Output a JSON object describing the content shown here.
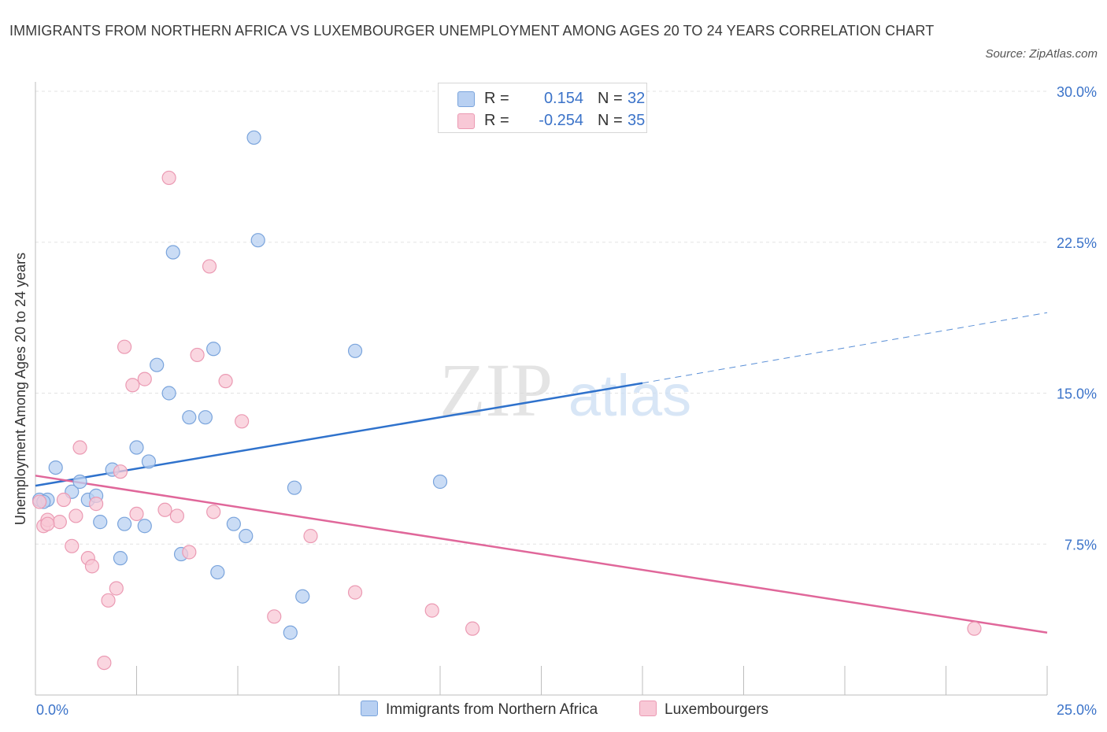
{
  "title": "IMMIGRANTS FROM NORTHERN AFRICA VS LUXEMBOURGER UNEMPLOYMENT AMONG AGES 20 TO 24 YEARS CORRELATION CHART",
  "source": "Source: ZipAtlas.com",
  "watermark": {
    "zip": "ZIP",
    "atlas": "atlas"
  },
  "legend": {
    "series": [
      {
        "r_label": "R =",
        "r_value": "0.154",
        "n_label": "N =",
        "n_value": "32"
      },
      {
        "r_label": "R =",
        "r_value": "-0.254",
        "n_label": "N =",
        "n_value": "35"
      }
    ]
  },
  "colors": {
    "blue_fill": "#b8d0f2",
    "blue_stroke": "#7aa4dc",
    "blue_line": "#2f72cc",
    "pink_fill": "#f8c8d6",
    "pink_stroke": "#eb9ab3",
    "pink_line": "#e0679a",
    "tick_label": "#3b73c9",
    "grid": "#e3e3e3"
  },
  "chart_data": {
    "type": "scatter",
    "title": "IMMIGRANTS FROM NORTHERN AFRICA VS LUXEMBOURGER UNEMPLOYMENT AMONG AGES 20 TO 24 YEARS CORRELATION CHART",
    "xlabel": "",
    "ylabel": "Unemployment Among Ages 20 to 24 years",
    "xlim": [
      0,
      25
    ],
    "ylim": [
      0,
      30
    ],
    "x_tick_labels": [
      "0.0%",
      "25.0%"
    ],
    "y_ticks": [
      7.5,
      15.0,
      22.5,
      30.0
    ],
    "y_tick_labels": [
      "7.5%",
      "15.0%",
      "22.5%",
      "30.0%"
    ],
    "grid": true,
    "legend_position": "bottom",
    "series": [
      {
        "name": "Immigrants from Northern Africa",
        "color": "#b8d0f2",
        "points": [
          [
            0.1,
            9.7
          ],
          [
            0.3,
            9.7
          ],
          [
            0.5,
            11.3
          ],
          [
            0.9,
            10.1
          ],
          [
            1.1,
            10.6
          ],
          [
            1.3,
            9.7
          ],
          [
            1.5,
            9.9
          ],
          [
            1.6,
            8.6
          ],
          [
            1.9,
            11.2
          ],
          [
            2.1,
            6.8
          ],
          [
            2.2,
            8.5
          ],
          [
            2.5,
            12.3
          ],
          [
            2.7,
            8.4
          ],
          [
            2.8,
            11.6
          ],
          [
            3.0,
            16.4
          ],
          [
            3.3,
            15.0
          ],
          [
            3.4,
            22.0
          ],
          [
            3.6,
            7.0
          ],
          [
            3.8,
            13.8
          ],
          [
            4.2,
            13.8
          ],
          [
            4.4,
            17.2
          ],
          [
            4.5,
            6.1
          ],
          [
            4.9,
            8.5
          ],
          [
            5.2,
            7.9
          ],
          [
            5.4,
            27.7
          ],
          [
            5.5,
            22.6
          ],
          [
            6.3,
            3.1
          ],
          [
            6.4,
            10.3
          ],
          [
            6.6,
            4.9
          ],
          [
            7.9,
            17.1
          ],
          [
            10.0,
            10.6
          ],
          [
            0.2,
            9.6
          ]
        ]
      },
      {
        "name": "Luxembourgers",
        "color": "#f8c8d6",
        "points": [
          [
            0.1,
            9.6
          ],
          [
            0.2,
            8.4
          ],
          [
            0.3,
            8.7
          ],
          [
            0.6,
            8.6
          ],
          [
            0.7,
            9.7
          ],
          [
            0.9,
            7.4
          ],
          [
            1.0,
            8.9
          ],
          [
            1.1,
            12.3
          ],
          [
            1.3,
            6.8
          ],
          [
            1.4,
            6.4
          ],
          [
            1.5,
            9.5
          ],
          [
            1.8,
            4.7
          ],
          [
            1.7,
            1.6
          ],
          [
            2.0,
            5.3
          ],
          [
            2.1,
            11.1
          ],
          [
            2.2,
            17.3
          ],
          [
            2.4,
            15.4
          ],
          [
            2.5,
            9.0
          ],
          [
            2.7,
            15.7
          ],
          [
            3.2,
            9.2
          ],
          [
            3.3,
            25.7
          ],
          [
            3.5,
            8.9
          ],
          [
            3.8,
            7.1
          ],
          [
            4.0,
            16.9
          ],
          [
            4.3,
            21.3
          ],
          [
            4.4,
            9.1
          ],
          [
            4.7,
            15.6
          ],
          [
            5.1,
            13.6
          ],
          [
            5.9,
            3.9
          ],
          [
            6.8,
            7.9
          ],
          [
            7.9,
            5.1
          ],
          [
            9.8,
            4.2
          ],
          [
            10.8,
            3.3
          ],
          [
            23.2,
            3.3
          ],
          [
            0.3,
            8.5
          ]
        ]
      }
    ],
    "trendlines": [
      {
        "series": "Immigrants from Northern Africa",
        "x": [
          0,
          15
        ],
        "y": [
          10.4,
          15.5
        ],
        "dashed_extension": {
          "x": [
            15,
            25
          ],
          "y": [
            15.5,
            19.0
          ]
        }
      },
      {
        "series": "Luxembourgers",
        "x": [
          0,
          25
        ],
        "y": [
          10.9,
          3.1
        ]
      }
    ]
  }
}
